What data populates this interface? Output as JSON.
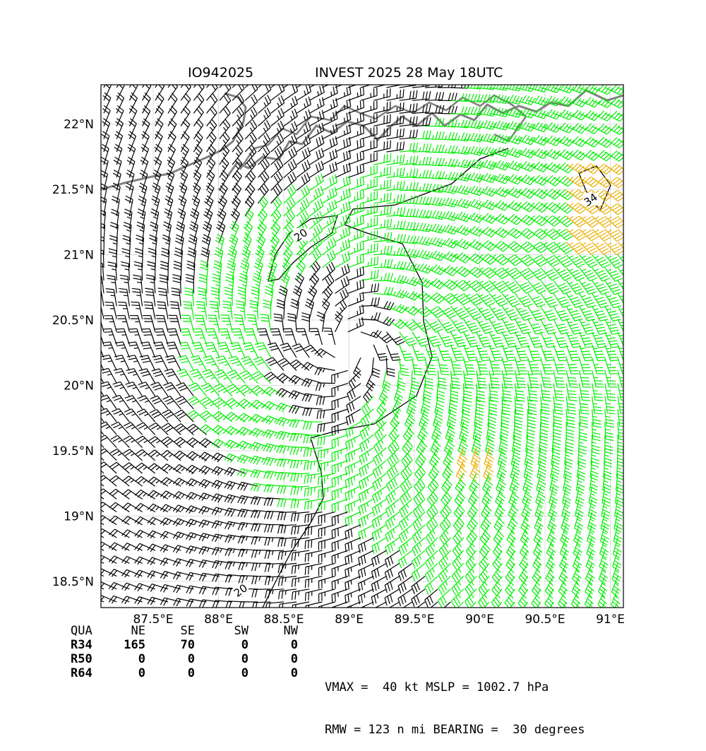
{
  "header": {
    "storm_id": "IO942025",
    "storm_title": "INVEST 2025 28 May 18UTC"
  },
  "map": {
    "lon_range": [
      87.1,
      91.1
    ],
    "lat_range": [
      18.3,
      22.3
    ],
    "lon_ticks": [
      {
        "value": 87.5,
        "label": "87.5°E"
      },
      {
        "value": 88.0,
        "label": "88°E"
      },
      {
        "value": 88.5,
        "label": "88.5°E"
      },
      {
        "value": 89.0,
        "label": "89°E"
      },
      {
        "value": 89.5,
        "label": "89.5°E"
      },
      {
        "value": 90.0,
        "label": "90°E"
      },
      {
        "value": 90.5,
        "label": "90.5°E"
      },
      {
        "value": 91.0,
        "label": "91°E"
      }
    ],
    "lat_ticks": [
      {
        "value": 22.0,
        "label": "22°N"
      },
      {
        "value": 21.5,
        "label": "21.5°N"
      },
      {
        "value": 21.0,
        "label": "21°N"
      },
      {
        "value": 20.5,
        "label": "20.5°N"
      },
      {
        "value": 20.0,
        "label": "20°N"
      },
      {
        "value": 19.5,
        "label": "19.5°N"
      },
      {
        "value": 19.0,
        "label": "19°N"
      },
      {
        "value": 18.5,
        "label": "18.5°N"
      }
    ],
    "gridlines": true,
    "center": {
      "lon": 89.0,
      "lat": 20.3
    },
    "contours": [
      {
        "label": "20",
        "label_lon": 88.17,
        "label_lat": 18.43
      },
      {
        "label": "20",
        "label_lon": 88.63,
        "label_lat": 21.15
      },
      {
        "label": "34",
        "label_lon": 90.85,
        "label_lat": 21.42
      }
    ],
    "wind_colors": {
      "below_34": "#000000",
      "34_to_50": "#00ee00",
      "50_to_64": "#e8b000"
    },
    "coastline_color": "#808080"
  },
  "wind_radii": {
    "header": [
      "QUA",
      "NE",
      "SE",
      "SW",
      "NW"
    ],
    "rows": [
      {
        "label": "R34",
        "values": [
          "165",
          "70",
          "0",
          "0"
        ]
      },
      {
        "label": "R50",
        "values": [
          "0",
          "0",
          "0",
          "0"
        ]
      },
      {
        "label": "R64",
        "values": [
          "0",
          "0",
          "0",
          "0"
        ]
      }
    ]
  },
  "stats": {
    "vmax_line": "VMAX =  40 kt MSLP = 1002.7 hPa",
    "rmw_line": "RMW = 123 n mi BEARING =  30 degrees"
  }
}
